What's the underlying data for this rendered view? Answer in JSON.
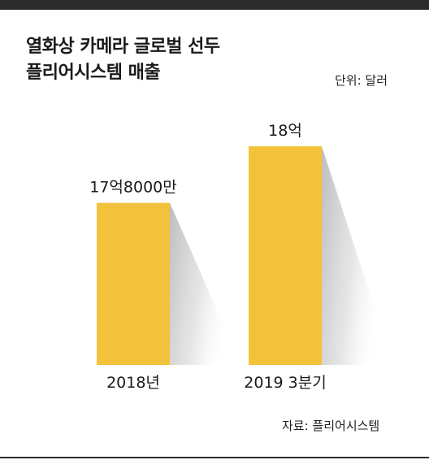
{
  "title_line1": "열화상 카메라 글로벌 선두",
  "title_line2": "플리어시스템 매출",
  "unit_label": "단위: 달러",
  "source_label": "자료: 플리어시스템",
  "chart_data": {
    "type": "bar",
    "title": "열화상 카메라 글로벌 선두 플리어시스템 매출",
    "categories": [
      "2018년",
      "2019 3분기"
    ],
    "values": [
      1780000000,
      1800000000
    ],
    "data_labels": [
      "17억8000만",
      "18억"
    ],
    "ylabel": "",
    "xlabel": "",
    "ylim": [
      0,
      1800000000
    ],
    "grid": false,
    "bar_color": "#f3c23b",
    "shadow_color": "#c9c9c9"
  }
}
